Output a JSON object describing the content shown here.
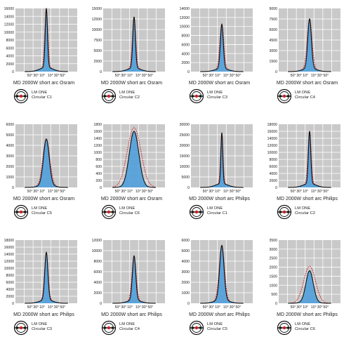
{
  "chart_data": [
    {
      "type": "line",
      "caption": "MD 2000W short arc Osram",
      "lamp_line1": "LM ONE",
      "lamp_line2": "Circular C1",
      "yticks": [
        0,
        2000,
        4000,
        6000,
        8000,
        10000,
        12000,
        14000,
        16000
      ],
      "ylim": [
        0,
        16000
      ],
      "xticks": [
        "50°",
        "30°",
        "10°",
        "10°",
        "30°",
        "50°"
      ],
      "peak": 16000,
      "peak_width": 2.2,
      "dashed_peak": 16000,
      "dashed_width": 3.0
    },
    {
      "type": "line",
      "caption": "MD 2000W short arc Osram",
      "lamp_line1": "LM ONE",
      "lamp_line2": "Circular C2",
      "yticks": [
        0,
        2500,
        5000,
        7500,
        10000,
        12500,
        15000
      ],
      "ylim": [
        0,
        15000
      ],
      "xticks": [
        "50°",
        "30°",
        "10°",
        "10°",
        "30°",
        "50°"
      ],
      "peak": 13000,
      "peak_width": 2.5,
      "dashed_peak": 13000,
      "dashed_width": 3.3
    },
    {
      "type": "line",
      "caption": "MD 2000W short arc Osram",
      "lamp_line1": "LM ONE",
      "lamp_line2": "Circular C3",
      "yticks": [
        0,
        2000,
        4000,
        6000,
        8000,
        10000,
        12000,
        14000
      ],
      "ylim": [
        0,
        14000
      ],
      "xticks": [
        "50°",
        "30°",
        "10°",
        "10°",
        "30°",
        "50°"
      ],
      "peak": 10500,
      "peak_width": 2.8,
      "dashed_peak": 10500,
      "dashed_width": 3.8
    },
    {
      "type": "line",
      "caption": "MD 2000W short arc Osram",
      "lamp_line1": "LM ONE",
      "lamp_line2": "Circular C4",
      "yticks": [
        0,
        1500,
        3000,
        4500,
        6000,
        7500,
        9000
      ],
      "ylim": [
        0,
        9000
      ],
      "xticks": [
        "50°",
        "30°",
        "10°",
        "10°",
        "30°",
        "50°"
      ],
      "peak": 7500,
      "peak_width": 3.5,
      "dashed_peak": 7500,
      "dashed_width": 4.6
    },
    {
      "type": "line",
      "caption": "MD 2000W short arc Osram",
      "lamp_line1": "LM ONE",
      "lamp_line2": "Circular C5",
      "yticks": [
        0,
        1000,
        2000,
        3000,
        4000,
        5000,
        6000
      ],
      "ylim": [
        0,
        6000
      ],
      "xticks": [
        "50°",
        "30°",
        "10°",
        "10°",
        "30°",
        "50°"
      ],
      "peak": 4600,
      "peak_width": 5.5,
      "dashed_peak": 4600,
      "dashed_width": 6.5
    },
    {
      "type": "line",
      "caption": "MD 2000W short arc Osram",
      "lamp_line1": "LM ONE",
      "lamp_line2": "Circular C6",
      "yticks": [
        0,
        200,
        400,
        600,
        800,
        1000,
        1200,
        1400,
        1600,
        1800
      ],
      "ylim": [
        0,
        1800
      ],
      "xticks": [
        "50°",
        "30°",
        "10°",
        "10°",
        "30°",
        "50°"
      ],
      "peak": 1600,
      "peak_width": 9,
      "dashed_peak": 1700,
      "dashed_width": 13
    },
    {
      "type": "line",
      "caption": "MD 2000W short arc Philips",
      "lamp_line1": "LM ONE",
      "lamp_line2": "Circular C1",
      "yticks": [
        0,
        5000,
        10000,
        15000,
        20000,
        25000,
        30000
      ],
      "ylim": [
        0,
        30000
      ],
      "xticks": [
        "50°",
        "30°",
        "10°",
        "10°",
        "30°",
        "50°"
      ],
      "peak": 26000,
      "peak_width": 1.8,
      "dashed_peak": 26000,
      "dashed_width": 2.4
    },
    {
      "type": "line",
      "caption": "MD 2000W short arc Philips",
      "lamp_line1": "LM ONE",
      "lamp_line2": "Circular C2",
      "yticks": [
        0,
        2000,
        4000,
        6000,
        8000,
        10000,
        12000,
        14000,
        16000,
        18000
      ],
      "ylim": [
        0,
        18000
      ],
      "xticks": [
        "50°",
        "30°",
        "10°",
        "10°",
        "30°",
        "50°"
      ],
      "peak": 16000,
      "peak_width": 2.3,
      "dashed_peak": 16000,
      "dashed_width": 3.1
    },
    {
      "type": "line",
      "caption": "MD 2000W short arc Philips",
      "lamp_line1": "LM ONE",
      "lamp_line2": "Circular C3",
      "yticks": [
        0,
        2000,
        4000,
        6000,
        8000,
        10000,
        12000,
        14000,
        16000,
        18000
      ],
      "ylim": [
        0,
        18000
      ],
      "xticks": [
        "50°",
        "30°",
        "10°",
        "10°",
        "30°",
        "50°"
      ],
      "peak": 14500,
      "peak_width": 3.0,
      "dashed_peak": 14500,
      "dashed_width": 3.5
    },
    {
      "type": "line",
      "caption": "MD 2000W short arc Philips",
      "lamp_line1": "LM ONE",
      "lamp_line2": "Circular C4",
      "yticks": [
        0,
        2000,
        4000,
        6000,
        8000,
        10000,
        12000
      ],
      "ylim": [
        0,
        12000
      ],
      "xticks": [
        "50°",
        "30°",
        "10°",
        "10°",
        "30°",
        "50°"
      ],
      "peak": 9000,
      "peak_width": 3.2,
      "dashed_peak": 9000,
      "dashed_width": 4.0
    },
    {
      "type": "line",
      "caption": "MD 2000W short arc Philips",
      "lamp_line1": "LM ONE",
      "lamp_line2": "Circular C5",
      "yticks": [
        0,
        1000,
        2000,
        3000,
        4000,
        5000,
        6000
      ],
      "ylim": [
        0,
        6000
      ],
      "xticks": [
        "50°",
        "30°",
        "10°",
        "10°",
        "30°",
        "50°"
      ],
      "peak": 5500,
      "peak_width": 4.2,
      "dashed_peak": 5500,
      "dashed_width": 5.0
    },
    {
      "type": "line",
      "caption": "MD 2000W short arc Philips",
      "lamp_line1": "LM ONE",
      "lamp_line2": "Circular C6",
      "yticks": [
        0,
        500,
        1000,
        1500,
        2000,
        2500,
        3000,
        3500
      ],
      "ylim": [
        0,
        3500
      ],
      "xticks": [
        "50°",
        "30°",
        "10°",
        "10°",
        "30°",
        "50°"
      ],
      "peak": 1800,
      "peak_width": 7,
      "dashed_peak": 2050,
      "dashed_width": 11
    }
  ],
  "colors": {
    "plot_bg": "#c9c9c9",
    "grid": "#ffffff",
    "fill": "#4f9fd9",
    "curve": "#111111",
    "dashed": "#d0202a"
  }
}
